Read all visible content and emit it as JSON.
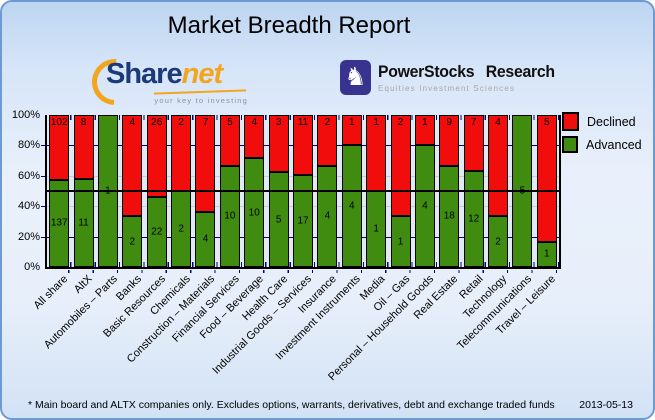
{
  "window": {
    "title": "Market Breadth Report"
  },
  "logos": {
    "sharenet": {
      "text_share": "Share",
      "text_net": "net",
      "tagline": "your key to investing",
      "navy": "#1c3a78",
      "orange": "#f2a51f",
      "icon": "orange-arc-icon"
    },
    "powerstocks": {
      "title": "PowerStocks Research",
      "subtitle": "Equities Investment Sciences",
      "badge_color": "#37338e",
      "icon": "knight-icon",
      "icon_glyph": "♞"
    }
  },
  "legend": {
    "items": [
      {
        "label": "Declined",
        "color": "#f20d0d"
      },
      {
        "label": "Advanced",
        "color": "#3f8c11"
      }
    ]
  },
  "chart_data": {
    "type": "bar",
    "stacked": true,
    "title": "Market Breadth Report",
    "description": "Stacked percentage bars of advanced (green, bottom) vs declined (red, top) companies per sector; labels show company counts",
    "categories": [
      "All share",
      "AltX",
      "Automobiles – Parts",
      "Banks",
      "Basic Resources",
      "Chemicals",
      "Construction – Materials",
      "Financial Services",
      "Food – Beverage",
      "Health Care",
      "Industrial Goods – Services",
      "Insurance",
      "Investment Instruments",
      "Media",
      "Oil – Gas",
      "Personal – Household Goods",
      "Real Estate",
      "Retail",
      "Technology",
      "Telecommunications",
      "Travel – Leisure"
    ],
    "series": [
      {
        "name": "Declined",
        "color": "#f20d0d",
        "position": "top",
        "values": [
          102,
          8,
          0,
          4,
          26,
          2,
          7,
          5,
          4,
          3,
          11,
          2,
          1,
          1,
          2,
          1,
          9,
          7,
          4,
          0,
          5
        ]
      },
      {
        "name": "Advanced",
        "color": "#3f8c11",
        "position": "bottom",
        "values": [
          137,
          11,
          1,
          2,
          22,
          2,
          4,
          10,
          10,
          5,
          17,
          4,
          4,
          1,
          1,
          4,
          18,
          12,
          2,
          5,
          1
        ]
      }
    ],
    "yticks": [
      "100%",
      "80%",
      "60%",
      "40%",
      "20%",
      "0%"
    ],
    "ylim": [
      0,
      100
    ],
    "reference_line_percent": 50,
    "grid": true,
    "legend_position": "top-right"
  },
  "footer": {
    "note": "* Main board and ALTX companies only. Excludes options, warrants, derivatives, debt and exchange traded funds",
    "date": "2013-05-13"
  }
}
